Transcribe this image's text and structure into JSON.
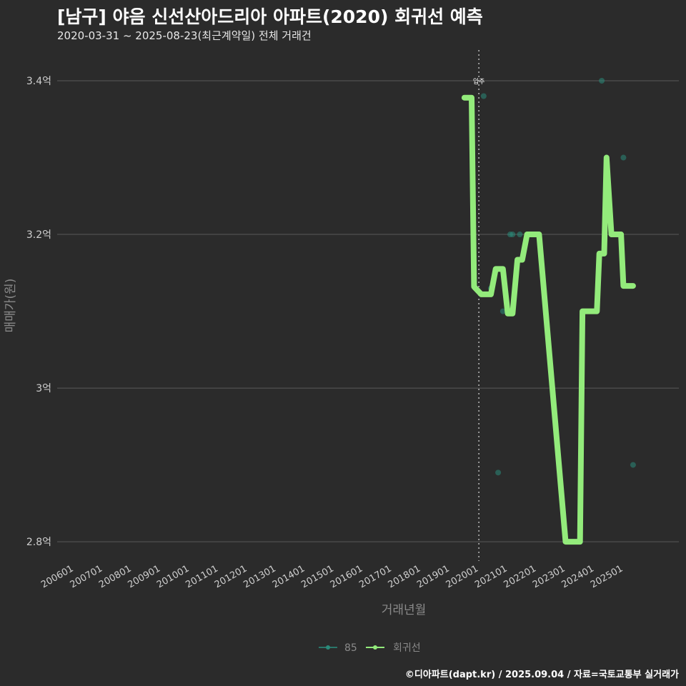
{
  "header": {
    "title": "[남구] 야음 신선산아드리아 아파트(2020) 회귀선 예측",
    "subtitle": "2020-03-31 ~ 2025-08-23(최근계약일) 전체 거래건"
  },
  "footer": {
    "credit": "©디아파트(dapt.kr) / 2025.09.04 / 자료=국토교통부 실거래가"
  },
  "colors": {
    "background": "#2b2b2b",
    "grid": "#5a5a5a",
    "axis_text": "#cfcfcf",
    "axis_title": "#8a8a8a",
    "points": "#2a8a7a",
    "regression_line": "#93eb7b",
    "vline": "#bbbbbb"
  },
  "chart_data": {
    "type": "line",
    "xlabel": "거래년월",
    "ylabel": "매매가(원)",
    "x_ticks": [
      "200601",
      "200701",
      "200801",
      "200901",
      "201001",
      "201101",
      "201201",
      "201301",
      "201401",
      "201501",
      "201601",
      "201701",
      "201801",
      "201901",
      "202001",
      "202101",
      "202201",
      "202301",
      "202401",
      "202501"
    ],
    "y_ticks": [
      {
        "value": 2.8,
        "label": "2.8억"
      },
      {
        "value": 3.0,
        "label": "3억"
      },
      {
        "value": 3.2,
        "label": "3.2억"
      },
      {
        "value": 3.4,
        "label": "3.4억"
      }
    ],
    "xlim": [
      "2005-06",
      "2026-12"
    ],
    "ylim": [
      2.775,
      3.44
    ],
    "grid": true,
    "legend_position": "bottom",
    "vline": {
      "x": "2020-01",
      "label": "입주"
    },
    "series": [
      {
        "name": "85",
        "kind": "scatter",
        "points": [
          {
            "x": "2020-03",
            "y": 3.38
          },
          {
            "x": "2020-06",
            "y": 3.13
          },
          {
            "x": "2020-09",
            "y": 2.89
          },
          {
            "x": "2020-11",
            "y": 3.1
          },
          {
            "x": "2021-02",
            "y": 3.2
          },
          {
            "x": "2021-03",
            "y": 3.2
          },
          {
            "x": "2021-06",
            "y": 3.2
          },
          {
            "x": "2023-07",
            "y": 2.8
          },
          {
            "x": "2024-04",
            "y": 3.4
          },
          {
            "x": "2024-10",
            "y": 3.2
          },
          {
            "x": "2025-01",
            "y": 3.3
          },
          {
            "x": "2025-05",
            "y": 2.9
          }
        ]
      },
      {
        "name": "회귀선",
        "kind": "line",
        "points": [
          {
            "x": "2019-07",
            "y": 3.378
          },
          {
            "x": "2019-10",
            "y": 3.378
          },
          {
            "x": "2019-11",
            "y": 3.132
          },
          {
            "x": "2020-02",
            "y": 3.122
          },
          {
            "x": "2020-06",
            "y": 3.122
          },
          {
            "x": "2020-08",
            "y": 3.155
          },
          {
            "x": "2020-11",
            "y": 3.155
          },
          {
            "x": "2021-01",
            "y": 3.097
          },
          {
            "x": "2021-03",
            "y": 3.097
          },
          {
            "x": "2021-05",
            "y": 3.167
          },
          {
            "x": "2021-07",
            "y": 3.167
          },
          {
            "x": "2021-09",
            "y": 3.2
          },
          {
            "x": "2022-02",
            "y": 3.2
          },
          {
            "x": "2023-01",
            "y": 2.8
          },
          {
            "x": "2023-07",
            "y": 2.8
          },
          {
            "x": "2023-08",
            "y": 3.1
          },
          {
            "x": "2024-02",
            "y": 3.1
          },
          {
            "x": "2024-03",
            "y": 3.175
          },
          {
            "x": "2024-05",
            "y": 3.175
          },
          {
            "x": "2024-06",
            "y": 3.3
          },
          {
            "x": "2024-08",
            "y": 3.2
          },
          {
            "x": "2024-12",
            "y": 3.2
          },
          {
            "x": "2025-01",
            "y": 3.133
          },
          {
            "x": "2025-05",
            "y": 3.133
          }
        ]
      }
    ]
  }
}
